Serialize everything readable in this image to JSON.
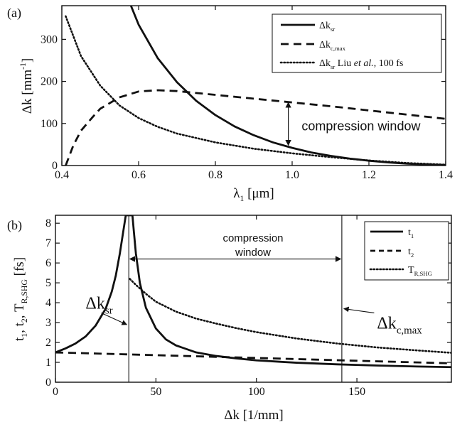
{
  "chart_data": [
    {
      "type": "line",
      "panel_label": "(a)",
      "xlabel": {
        "main": "λ",
        "sub": "1",
        "rest": " [μm]"
      },
      "ylabel": {
        "main": "Δk [mm",
        "sup": "-1",
        "rest": "]"
      },
      "xlim": [
        0.4,
        1.4
      ],
      "ylim": [
        0,
        380
      ],
      "xticks": [
        0.4,
        0.6,
        0.8,
        1.0,
        1.2,
        1.4
      ],
      "xtick_labels": [
        "0.4",
        "0.6",
        "0.8",
        "1.0",
        "1.2",
        "1.4"
      ],
      "yticks": [
        0,
        100,
        200,
        300
      ],
      "ytick_labels": [
        "0",
        "100",
        "200",
        "300"
      ],
      "legend_position": "top-right",
      "series": [
        {
          "key": "sr",
          "style": "solid",
          "legend": {
            "main": "Δk",
            "sub": "sr",
            "rest": ""
          },
          "x": [
            0.58,
            0.6,
            0.65,
            0.7,
            0.75,
            0.8,
            0.85,
            0.9,
            0.95,
            1.0,
            1.05,
            1.1,
            1.15,
            1.2,
            1.25,
            1.3,
            1.35,
            1.4
          ],
          "y": [
            380,
            335,
            255,
            198,
            154,
            120,
            93,
            72,
            55,
            42,
            31,
            23,
            16.5,
            11.5,
            7.5,
            4.5,
            2.5,
            1.5
          ]
        },
        {
          "key": "cmax",
          "style": "dashed",
          "legend": {
            "main": "Δk",
            "sub": "c,max",
            "rest": ""
          },
          "x": [
            0.41,
            0.43,
            0.45,
            0.48,
            0.5,
            0.55,
            0.6,
            0.65,
            0.7,
            0.8,
            0.9,
            1.0,
            1.1,
            1.2,
            1.3,
            1.4
          ],
          "y": [
            0,
            48,
            83,
            115,
            135,
            162,
            176,
            179,
            177,
            168,
            159,
            150,
            141,
            131,
            121,
            111
          ]
        },
        {
          "key": "liu",
          "style": "dotted",
          "legend": {
            "main": "Δk",
            "sub": "sr",
            "rest": " Liu et al., 100 fs"
          },
          "x": [
            0.41,
            0.45,
            0.5,
            0.55,
            0.6,
            0.65,
            0.7,
            0.8,
            0.9,
            1.0,
            1.1,
            1.2,
            1.3,
            1.4
          ],
          "y": [
            355,
            260,
            190,
            143,
            113,
            92,
            76,
            55,
            40,
            29,
            20,
            12,
            6,
            2
          ]
        }
      ],
      "annotations": [
        {
          "text": "compression window",
          "x": 1.01,
          "y": 94
        }
      ],
      "window_arrow": {
        "x": 0.99,
        "y_from": 150,
        "y_to": 48
      }
    },
    {
      "type": "line",
      "panel_label": "(b)",
      "xlabel": {
        "main": "Δk [1/mm]",
        "sub": "",
        "rest": ""
      },
      "ylabel": {
        "main": "t",
        "parts": [
          "t",
          "1",
          ", t",
          "2",
          ", T",
          "R,SHG",
          " [fs]"
        ]
      },
      "xlim": [
        0,
        197
      ],
      "ylim": [
        0,
        8.4
      ],
      "xticks": [
        0,
        50,
        100,
        150
      ],
      "xtick_labels": [
        "0",
        "50",
        "100",
        "150"
      ],
      "yticks": [
        0,
        1,
        2,
        3,
        4,
        5,
        6,
        7,
        8
      ],
      "ytick_labels": [
        "0",
        "1",
        "2",
        "3",
        "4",
        "5",
        "6",
        "7",
        "8"
      ],
      "legend_position": "top-right",
      "series": [
        {
          "key": "t1",
          "style": "solid",
          "legend": {
            "main": "t",
            "sub": "1",
            "rest": ""
          },
          "x": [
            0,
            5,
            10,
            15,
            20,
            25,
            28,
            30,
            32,
            34,
            35,
            35.7,
            37.5,
            38.3,
            39,
            40,
            42,
            45,
            50,
            55,
            60,
            70,
            80,
            90,
            100,
            120,
            140,
            160,
            180,
            197
          ],
          "y": [
            1.5,
            1.7,
            1.95,
            2.3,
            2.85,
            3.7,
            4.55,
            5.35,
            6.45,
            7.75,
            8.4,
            8.4,
            8.4,
            8.4,
            7.6,
            6.5,
            5.0,
            3.75,
            2.7,
            2.15,
            1.85,
            1.5,
            1.32,
            1.2,
            1.1,
            0.98,
            0.9,
            0.84,
            0.79,
            0.76
          ]
        },
        {
          "key": "t2",
          "style": "dashed",
          "legend": {
            "main": "t",
            "sub": "2",
            "rest": ""
          },
          "x": [
            0,
            50,
            100,
            150,
            197
          ],
          "y": [
            1.5,
            1.36,
            1.22,
            1.08,
            0.95
          ]
        },
        {
          "key": "tr",
          "style": "dotted",
          "legend": {
            "main": "T",
            "sub": "R,SHG",
            "rest": ""
          },
          "x": [
            37,
            40,
            45,
            50,
            60,
            70,
            80,
            90,
            100,
            120,
            140,
            160,
            180,
            197
          ],
          "y": [
            5.2,
            4.9,
            4.45,
            4.05,
            3.55,
            3.2,
            2.95,
            2.72,
            2.52,
            2.2,
            1.95,
            1.75,
            1.6,
            1.48
          ]
        }
      ],
      "vlines": [
        36.5,
        142.5
      ],
      "window_label": {
        "line1": "compression",
        "line2": "window"
      },
      "window_arrow": {
        "x_from": 37,
        "x_to": 142,
        "y": 6.2
      },
      "annotations": [
        {
          "main": "Δk",
          "sub": "sr",
          "x": 15,
          "y": 3.7,
          "arrow_to_x": 35.5,
          "arrow_to_y": 2.9
        },
        {
          "main": "Δk",
          "sub": "c,max",
          "x": 160,
          "y": 2.7,
          "arrow_to_x": 143.5,
          "arrow_to_y": 3.7
        }
      ]
    }
  ]
}
